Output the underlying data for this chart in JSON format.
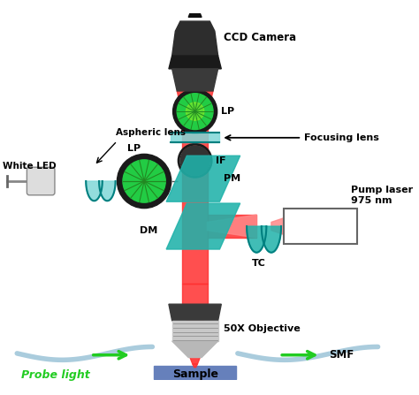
{
  "figure_width": 4.74,
  "figure_height": 4.47,
  "dpi": 100,
  "background_color": "#ffffff",
  "red": "#ff3030",
  "red_light": "#ff8888",
  "green": "#22cc22",
  "teal": "#20b2aa",
  "teal_dark": "#008080",
  "gray_dark": "#2a2a2a",
  "gray_mid": "#888888",
  "gray_light": "#c0c0c0",
  "cyan_lens": "#80d8d8",
  "blue_sample": "#6680bb",
  "fiber_color": "#aaccdd",
  "labels": {
    "ccd_camera": "CCD Camera",
    "lp_top": "LP",
    "focusing_lens": "Focusing lens",
    "if_label": "IF",
    "pm": "PM",
    "dm": "DM",
    "tc": "TC",
    "pump_laser": "Pump laser\n975 nm",
    "objective": "50X Objective",
    "sample": "Sample",
    "smf": "SMF",
    "probe_light": "Probe light",
    "white_led": "White LED",
    "aspheric_lens": "Aspheric lens",
    "lp_left": "LP"
  }
}
